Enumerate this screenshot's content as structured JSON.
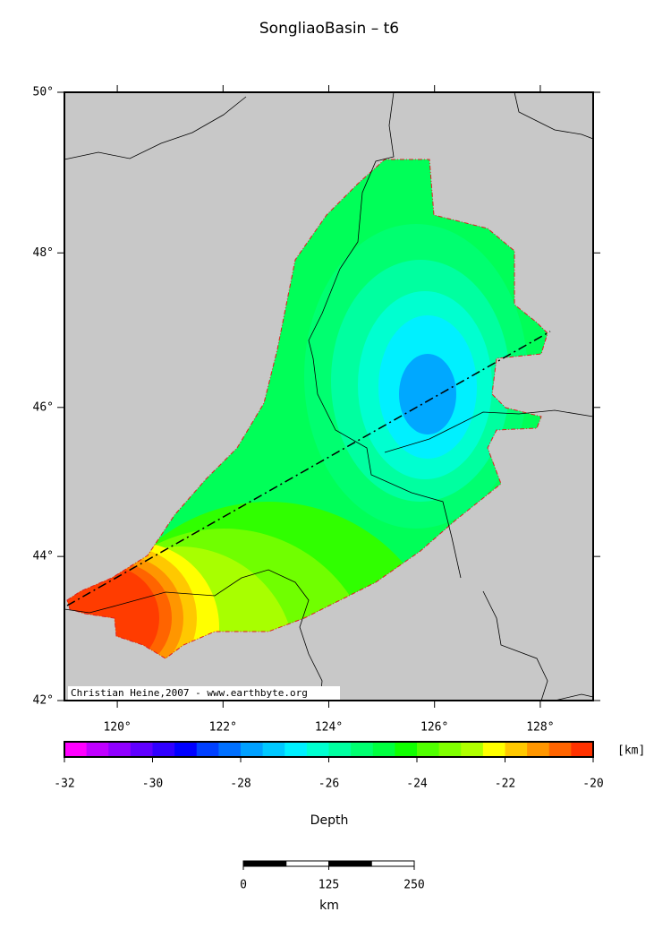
{
  "title": "SongliaoBasin – t6",
  "map": {
    "xlim": [
      119,
      129
    ],
    "ylim": [
      42,
      50
    ],
    "xticks": [
      {
        "value": 120,
        "label": "120°"
      },
      {
        "value": 122,
        "label": "122°"
      },
      {
        "value": 124,
        "label": "124°"
      },
      {
        "value": 126,
        "label": "126°"
      },
      {
        "value": 128,
        "label": "128°"
      }
    ],
    "yticks": [
      {
        "value": 42,
        "label": "42°"
      },
      {
        "value": 44,
        "label": "44°"
      },
      {
        "value": 46,
        "label": "46°"
      },
      {
        "value": 48,
        "label": "48°"
      },
      {
        "value": 50,
        "label": "50°"
      }
    ],
    "credit": "Christian Heine,2007 - www.earthbyte.org"
  },
  "colorbar": {
    "label": "Depth",
    "unit": "[km]",
    "lim": [
      -32,
      -20
    ],
    "ticks": [
      -32,
      -30,
      -28,
      -26,
      -24,
      -22,
      -20
    ],
    "colors": [
      "#ff00ff",
      "#c000ff",
      "#9000ff",
      "#6000ff",
      "#3000ff",
      "#0000ff",
      "#0040ff",
      "#0070ff",
      "#00a0ff",
      "#00c8ff",
      "#00f0ff",
      "#00ffd0",
      "#00ffa0",
      "#00ff70",
      "#00ff40",
      "#10ff00",
      "#50ff00",
      "#80ff00",
      "#b0ff00",
      "#ffff00",
      "#ffc800",
      "#ff9600",
      "#ff6400",
      "#ff3200"
    ]
  },
  "scalebar": {
    "lim": [
      0,
      250
    ],
    "ticks": [
      0,
      125,
      250
    ],
    "unit": "km"
  }
}
